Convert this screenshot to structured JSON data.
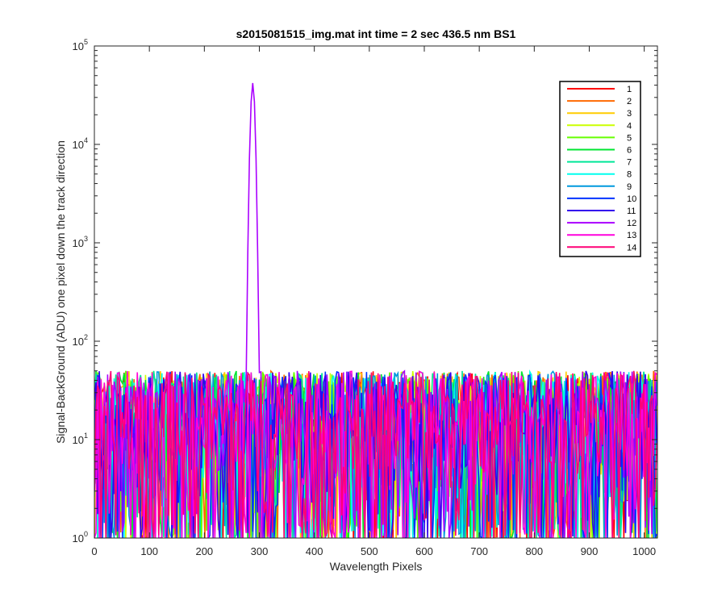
{
  "chart_data": {
    "type": "line",
    "title": "s2015081515_img.mat int time = 2 sec  436.5 nm BS1",
    "xlabel": "Wavelength Pixels",
    "ylabel": "Signal-BackGround (ADU) one pixel down the track direction",
    "xlim": [
      0,
      1024
    ],
    "ylim": [
      1,
      100000
    ],
    "yscale": "log",
    "x_ticks": [
      "0",
      "100",
      "200",
      "300",
      "400",
      "500",
      "600",
      "700",
      "800",
      "900",
      "1000"
    ],
    "y_ticks": [
      {
        "base": "10",
        "exp": "0"
      },
      {
        "base": "10",
        "exp": "1"
      },
      {
        "base": "10",
        "exp": "2"
      },
      {
        "base": "10",
        "exp": "3"
      },
      {
        "base": "10",
        "exp": "4"
      },
      {
        "base": "10",
        "exp": "5"
      }
    ],
    "grid": false,
    "legend_position": "top-right",
    "noise_range": [
      1,
      50
    ],
    "peak": {
      "series": "12",
      "x": 288,
      "y": 42000
    },
    "series": [
      {
        "name": "1",
        "color": "#ff0000"
      },
      {
        "name": "2",
        "color": "#ff6a00"
      },
      {
        "name": "3",
        "color": "#ffcc00"
      },
      {
        "name": "4",
        "color": "#ccff00"
      },
      {
        "name": "5",
        "color": "#66ff00"
      },
      {
        "name": "6",
        "color": "#00e632"
      },
      {
        "name": "7",
        "color": "#00e699"
      },
      {
        "name": "8",
        "color": "#00ffee"
      },
      {
        "name": "9",
        "color": "#0099dd"
      },
      {
        "name": "10",
        "color": "#0033ff"
      },
      {
        "name": "11",
        "color": "#3300ee"
      },
      {
        "name": "12",
        "color": "#aa00ff"
      },
      {
        "name": "13",
        "color": "#ff00dd"
      },
      {
        "name": "14",
        "color": "#ff0077"
      }
    ]
  }
}
